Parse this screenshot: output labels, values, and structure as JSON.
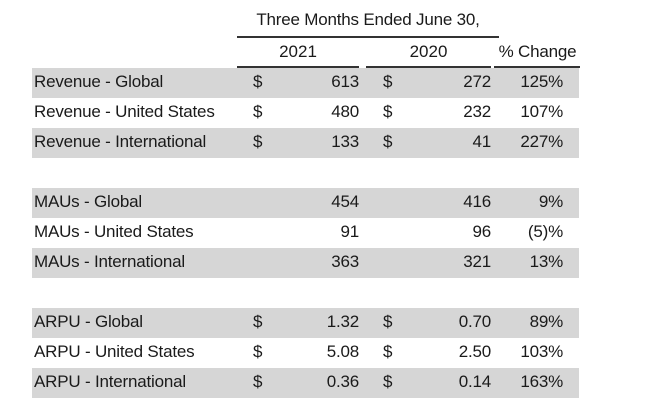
{
  "header": {
    "period": "Three Months Ended June 30,",
    "year1": "2021",
    "year2": "2020",
    "pct_change": "% Change"
  },
  "rows": [
    {
      "label": "Revenue - Global",
      "cur1": "$",
      "val1": "613",
      "cur2": "$",
      "val2": "272",
      "pct": "125%"
    },
    {
      "label": "Revenue - United States",
      "cur1": "$",
      "val1": "480",
      "cur2": "$",
      "val2": "232",
      "pct": "107%"
    },
    {
      "label": "Revenue - International",
      "cur1": "$",
      "val1": "133",
      "cur2": "$",
      "val2": "41",
      "pct": "227%"
    },
    {
      "label": "MAUs - Global",
      "cur1": "",
      "val1": "454",
      "cur2": "",
      "val2": "416",
      "pct": "9%"
    },
    {
      "label": "MAUs - United States",
      "cur1": "",
      "val1": "91",
      "cur2": "",
      "val2": "96",
      "pct": "(5)%"
    },
    {
      "label": "MAUs - International",
      "cur1": "",
      "val1": "363",
      "cur2": "",
      "val2": "321",
      "pct": "13%"
    },
    {
      "label": "ARPU - Global",
      "cur1": "$",
      "val1": "1.32",
      "cur2": "$",
      "val2": "0.70",
      "pct": "89%"
    },
    {
      "label": "ARPU - United States",
      "cur1": "$",
      "val1": "5.08",
      "cur2": "$",
      "val2": "2.50",
      "pct": "103%"
    },
    {
      "label": "ARPU - International",
      "cur1": "$",
      "val1": "0.36",
      "cur2": "$",
      "val2": "0.14",
      "pct": "163%"
    }
  ]
}
